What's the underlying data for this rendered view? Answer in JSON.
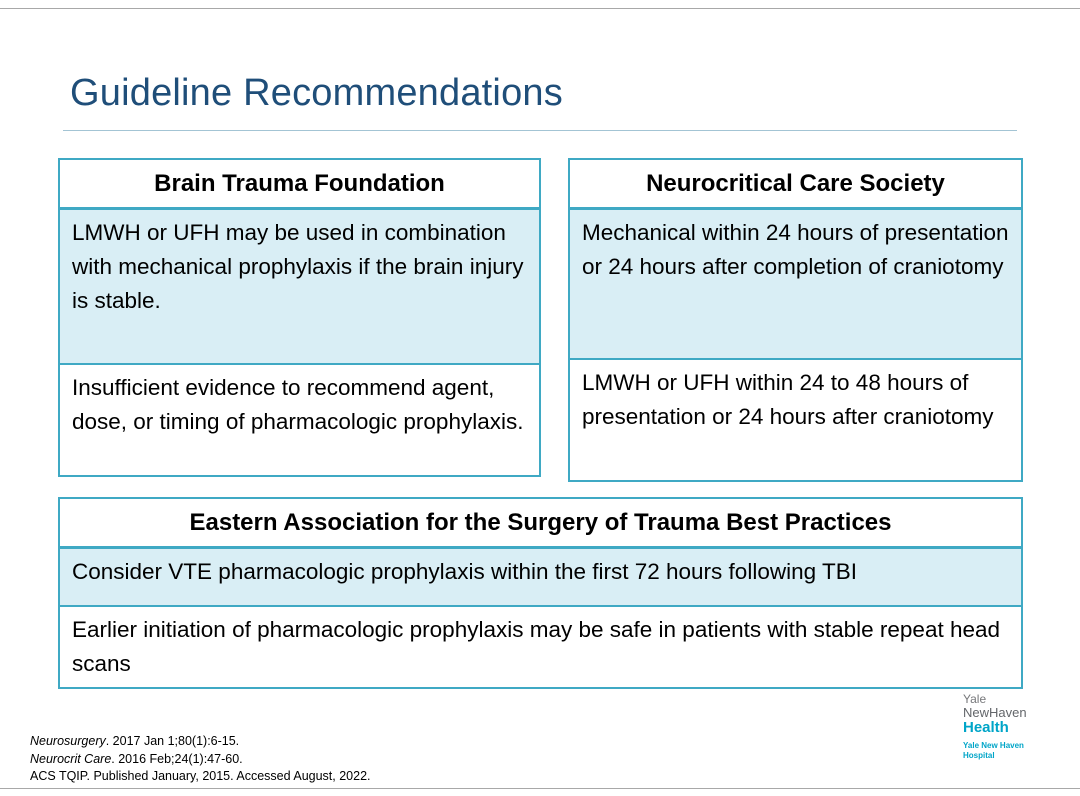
{
  "slide": {
    "title": "Guideline Recommendations"
  },
  "tables": {
    "btf": {
      "header": "Brain Trauma Foundation",
      "rows": [
        "LMWH or UFH may be used in combination with mechanical prophylaxis if the brain injury is stable.",
        "Insufficient evidence to recommend agent, dose, or timing of pharmacologic prophylaxis."
      ]
    },
    "ncs": {
      "header": "Neurocritical Care Society",
      "rows": [
        "Mechanical within 24 hours of presentation or 24 hours after completion of craniotomy",
        "LMWH or UFH within 24 to 48 hours of presentation or 24 hours after craniotomy"
      ]
    },
    "east": {
      "header": "Eastern Association for the Surgery of Trauma Best Practices",
      "rows": [
        "Consider VTE pharmacologic prophylaxis within the first 72 hours following TBI",
        "Earlier initiation of pharmacologic prophylaxis may be safe in patients with stable repeat head scans"
      ]
    }
  },
  "citations": [
    {
      "journal": "Neurosurgery",
      "text": ". 2017 Jan 1;80(1):6-15."
    },
    {
      "journal": "Neurocrit Care",
      "text": ". 2016 Feb;24(1):47-60."
    },
    {
      "journal": "",
      "text": "ACS TQIP. Published January, 2015. Accessed August, 2022."
    }
  ],
  "logo": {
    "yale": "Yale",
    "newhaven": "NewHaven",
    "health": "Health",
    "sub1": "Yale New Haven",
    "sub2": "Hospital"
  },
  "colors": {
    "title_blue": "#1F4E79",
    "table_border_teal": "#3FA9C4",
    "cell_fill_blue": "#D9EEF5",
    "logo_gray": "#77787B",
    "logo_teal": "#00A5C8"
  }
}
